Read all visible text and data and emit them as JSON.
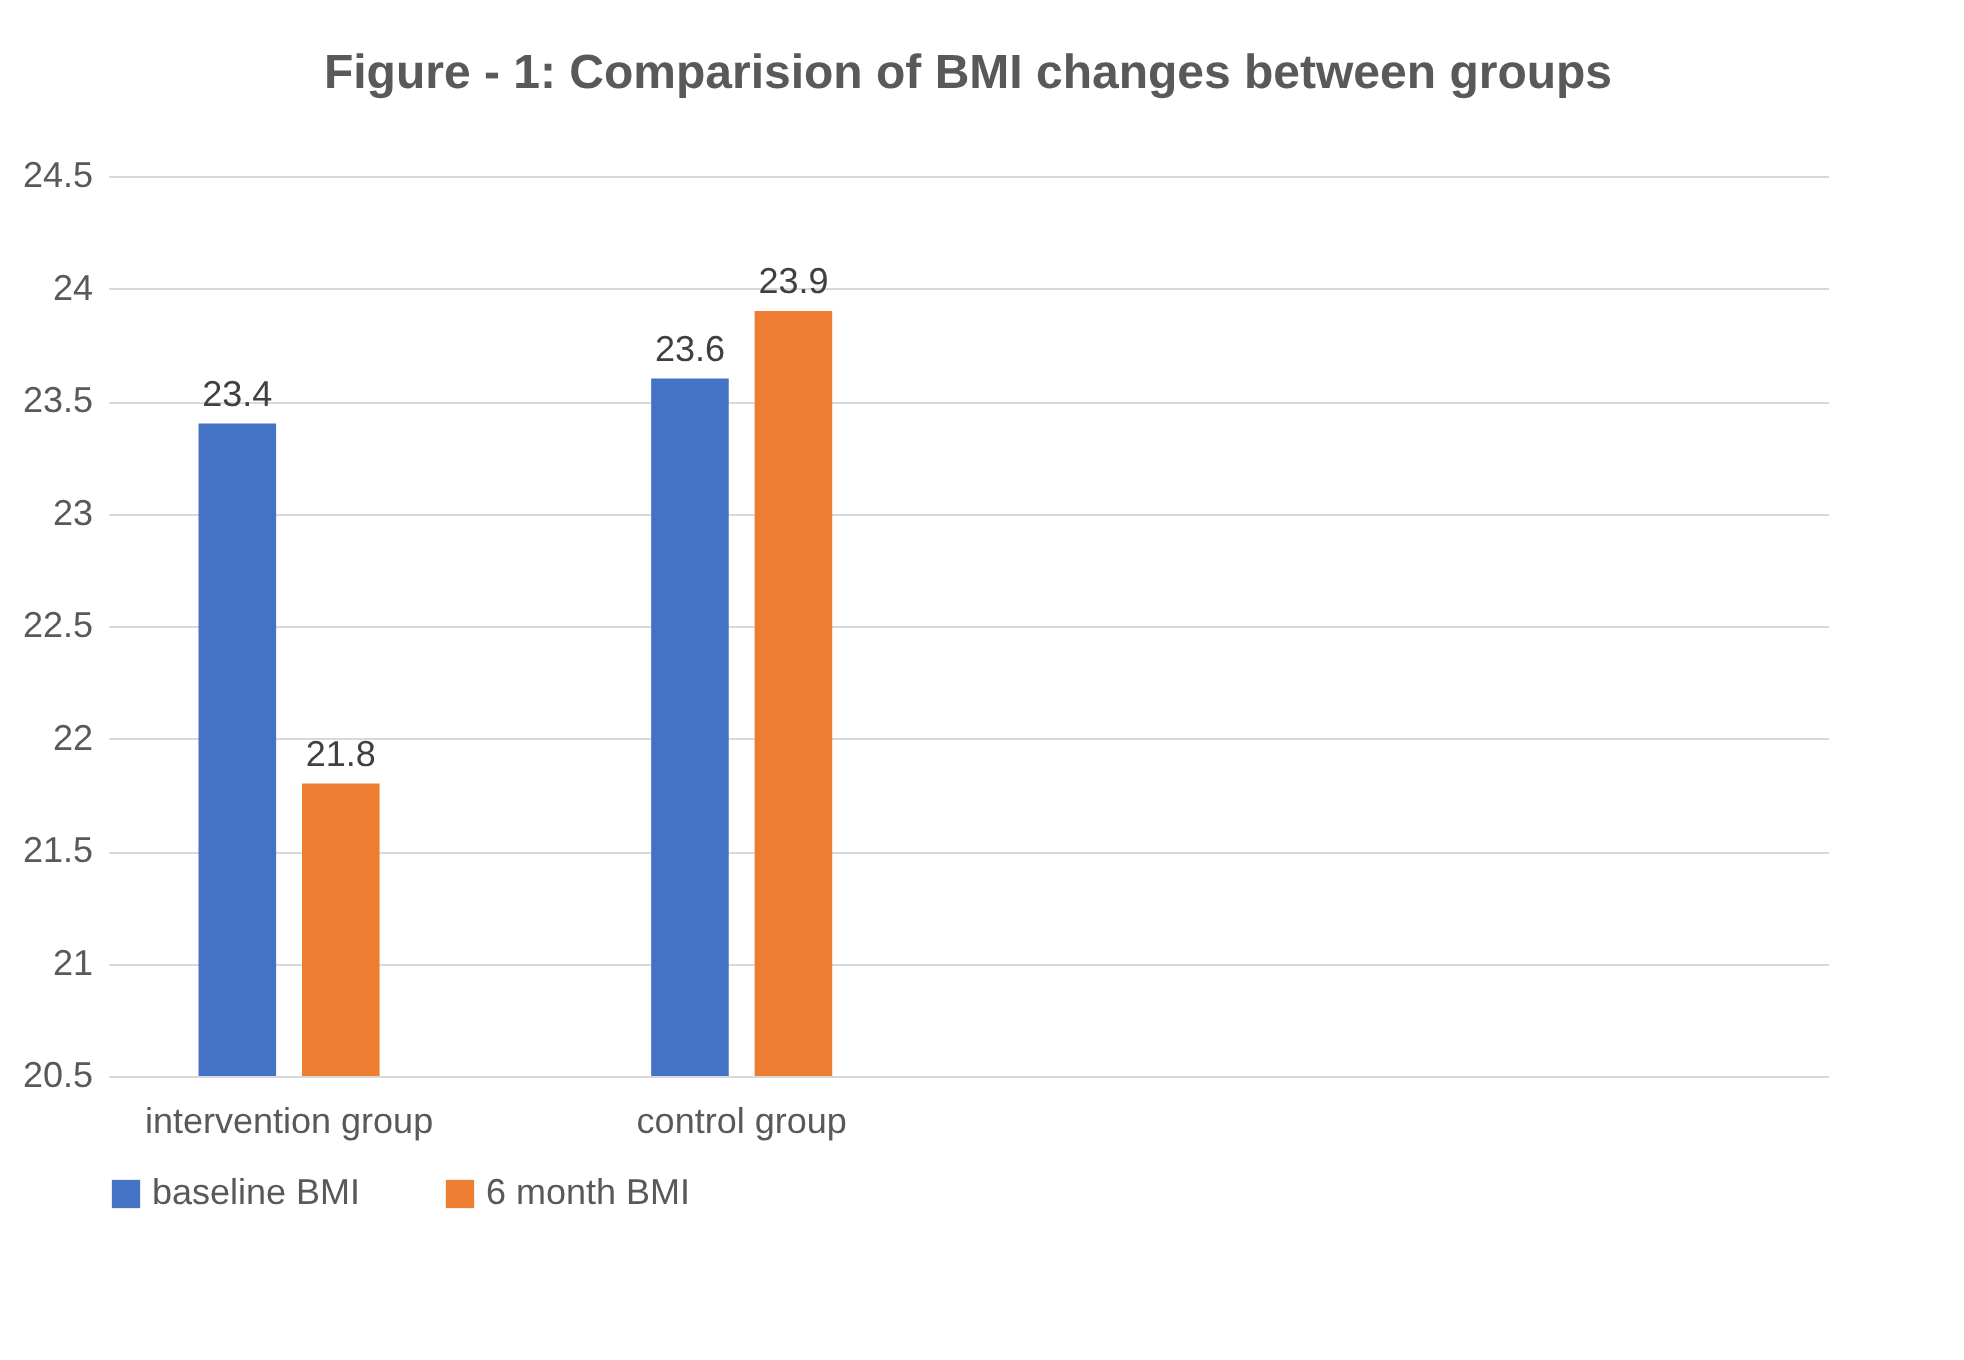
{
  "chart_data": {
    "type": "bar",
    "title": "Figure - 1: Comparision of BMI changes between groups",
    "categories": [
      "intervention group",
      "control group",
      null,
      null
    ],
    "series": [
      {
        "name": "baseline BMI",
        "color": "#4472c4",
        "values": [
          23.4,
          23.6,
          null,
          null
        ]
      },
      {
        "name": "6 month BMI",
        "color": "#ed7d31",
        "values": [
          21.8,
          23.9,
          null,
          null
        ]
      }
    ],
    "ylim": [
      20.5,
      24.5
    ],
    "yticks": [
      20.5,
      21,
      21.5,
      22,
      22.5,
      23,
      23.5,
      24,
      24.5
    ],
    "grid": "y",
    "legend": "bottom",
    "data_labels": true
  }
}
